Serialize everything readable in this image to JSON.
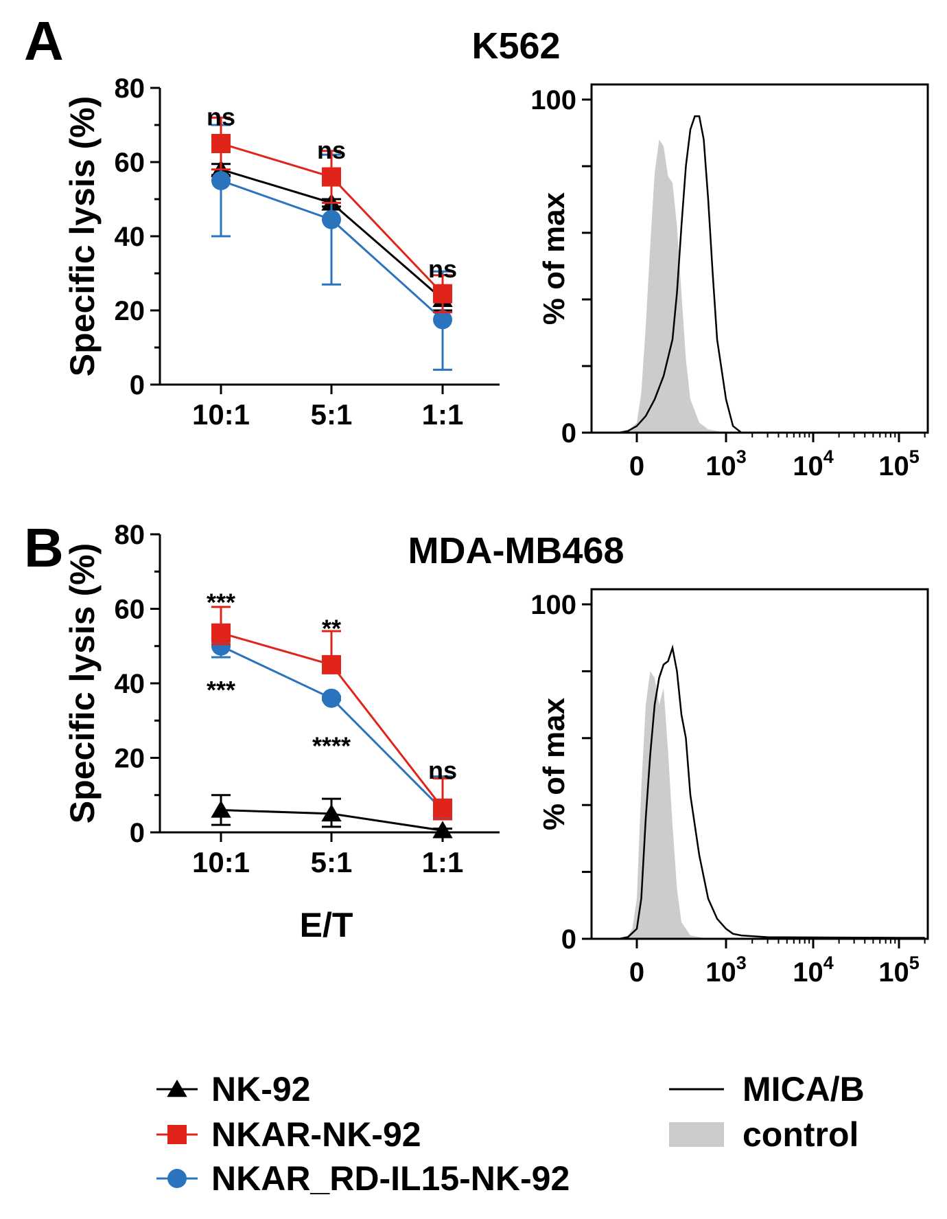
{
  "panels": {
    "A": {
      "letter": "A",
      "title": "K562"
    },
    "B": {
      "letter": "B",
      "title": "MDA-MB468"
    }
  },
  "colors": {
    "nk92": "#000000",
    "nkar": "#e02419",
    "il15": "#2a73bd",
    "control_fill": "#cccccc",
    "mica": "#000000"
  },
  "chart_data": [
    {
      "id": "lysisA",
      "type": "line",
      "panel": "A",
      "title": "K562",
      "categories": [
        "10:1",
        "5:1",
        "1:1"
      ],
      "ylabel": "Specific lysis  (%)",
      "xlabel": "",
      "ylim": [
        0,
        80
      ],
      "yticks": [
        0,
        20,
        40,
        60,
        80
      ],
      "series": [
        {
          "key": "nk92",
          "name": "NK-92",
          "marker": "triangle",
          "values": [
            58,
            49,
            23
          ],
          "err_hi": [
            1.5,
            1,
            3
          ],
          "err_lo": [
            1.5,
            1,
            3
          ]
        },
        {
          "key": "il15",
          "name": "NKAR_RD-IL15-NK-92",
          "marker": "circle",
          "values": [
            55,
            44.5,
            17.5
          ],
          "err_hi": [
            15,
            17.5,
            13
          ],
          "err_lo": [
            15,
            17.5,
            13.5
          ]
        },
        {
          "key": "nkar",
          "name": "NKAR-NK-92",
          "marker": "square",
          "values": [
            65,
            56,
            24.5
          ],
          "err_hi": [
            7,
            7,
            5
          ],
          "err_lo": [
            7,
            7,
            5
          ]
        }
      ],
      "annotations": [
        {
          "cat": 0,
          "y": 72.5,
          "text": "ns"
        },
        {
          "cat": 1,
          "y": 63.5,
          "text": "ns"
        },
        {
          "cat": 2,
          "y": 31.5,
          "text": "ns"
        }
      ]
    },
    {
      "id": "histA",
      "type": "area",
      "panel": "A",
      "ylabel": "% of max",
      "xlabel": "",
      "ylim": [
        0,
        100
      ],
      "yticks": [
        0,
        20,
        40,
        60,
        80,
        100
      ],
      "ytick_labels": [
        "0",
        "",
        "",
        "",
        "",
        "100"
      ],
      "xtick_labels": [
        {
          "pos": 0,
          "base": "0",
          "exp": ""
        },
        {
          "pos": 1000,
          "base": "10",
          "exp": "3"
        },
        {
          "pos": 10000,
          "base": "10",
          "exp": "4"
        },
        {
          "pos": 100000,
          "base": "10",
          "exp": "5"
        }
      ],
      "series": [
        {
          "key": "control",
          "name": "control",
          "style": "fill",
          "x": [
            -220,
            -100,
            0,
            50,
            100,
            150,
            200,
            250,
            300,
            350,
            400,
            450,
            500,
            550,
            600,
            700,
            800,
            1000
          ],
          "y": [
            0,
            0.5,
            3,
            12,
            32,
            56,
            78,
            88,
            86,
            77,
            75,
            62,
            42,
            22,
            10,
            3,
            1,
            0
          ]
        },
        {
          "key": "mica",
          "name": "MICA/B",
          "style": "line",
          "x": [
            -200,
            -100,
            0,
            100,
            200,
            300,
            400,
            450,
            500,
            550,
            600,
            650,
            700,
            750,
            800,
            850,
            900,
            1000,
            1200,
            1500
          ],
          "y": [
            0,
            0.5,
            2,
            5,
            10,
            17,
            28,
            42,
            62,
            80,
            91,
            95,
            95,
            88,
            70,
            48,
            28,
            10,
            2,
            0
          ]
        }
      ]
    },
    {
      "id": "lysisB",
      "type": "line",
      "panel": "B",
      "title": "MDA-MB468",
      "categories": [
        "10:1",
        "5:1",
        "1:1"
      ],
      "ylabel": "Specific lysis  (%)",
      "xlabel": "E/T",
      "ylim": [
        0,
        80
      ],
      "yticks": [
        0,
        20,
        40,
        60,
        80
      ],
      "series": [
        {
          "key": "nk92",
          "name": "NK-92",
          "marker": "triangle",
          "values": [
            6,
            5,
            0.5
          ],
          "err_hi": [
            4,
            4,
            0.5
          ],
          "err_lo": [
            4,
            3.5,
            0.5
          ]
        },
        {
          "key": "il15",
          "name": "NKAR_RD-IL15-NK-92",
          "marker": "circle",
          "values": [
            50,
            36,
            6
          ],
          "err_hi": [
            3,
            0.5,
            9
          ],
          "err_lo": [
            3,
            0.5,
            2
          ]
        },
        {
          "key": "nkar",
          "name": "NKAR-NK-92",
          "marker": "square",
          "values": [
            53.5,
            45,
            6.5
          ],
          "err_hi": [
            7,
            9,
            8
          ],
          "err_lo": [
            3,
            2,
            3
          ]
        }
      ],
      "annotations": [
        {
          "cat": 0,
          "y": 62,
          "text": "***"
        },
        {
          "cat": 0,
          "y": 38.5,
          "text": "***"
        },
        {
          "cat": 1,
          "y": 55,
          "text": "**"
        },
        {
          "cat": 1,
          "y": 23.5,
          "text": "****"
        },
        {
          "cat": 2,
          "y": 17,
          "text": "ns"
        }
      ]
    },
    {
      "id": "histB",
      "type": "area",
      "panel": "B",
      "ylabel": "% of max",
      "xlabel": "",
      "ylim": [
        0,
        100
      ],
      "yticks": [
        0,
        20,
        40,
        60,
        80,
        100
      ],
      "ytick_labels": [
        "0",
        "",
        "",
        "",
        "",
        "100"
      ],
      "xtick_labels": [
        {
          "pos": 0,
          "base": "0",
          "exp": ""
        },
        {
          "pos": 1000,
          "base": "10",
          "exp": "3"
        },
        {
          "pos": 10000,
          "base": "10",
          "exp": "4"
        },
        {
          "pos": 100000,
          "base": "10",
          "exp": "5"
        }
      ],
      "series": [
        {
          "key": "control",
          "name": "control",
          "style": "fill",
          "x": [
            -220,
            -100,
            -50,
            0,
            50,
            100,
            150,
            200,
            250,
            300,
            350,
            400,
            450,
            500,
            600,
            800
          ],
          "y": [
            0,
            1,
            3,
            12,
            45,
            70,
            80,
            78,
            70,
            75,
            56,
            34,
            15,
            5,
            1,
            0
          ]
        },
        {
          "key": "mica",
          "name": "MICA/B",
          "style": "line",
          "x": [
            -200,
            -100,
            0,
            50,
            100,
            150,
            200,
            250,
            300,
            350,
            400,
            450,
            500,
            550,
            600,
            700,
            800,
            900,
            1000,
            1200,
            1500,
            3000,
            100000,
            200000
          ],
          "y": [
            0,
            0.5,
            3,
            12,
            36,
            55,
            70,
            78,
            82,
            83,
            87,
            80,
            67,
            60,
            43,
            25,
            12,
            6,
            3,
            1.5,
            1,
            0.5,
            0.3,
            0.3
          ]
        }
      ]
    }
  ],
  "legend_left": [
    {
      "key": "nk92",
      "marker": "triangle",
      "label": "NK-92"
    },
    {
      "key": "nkar",
      "marker": "square",
      "label": "NKAR-NK-92"
    },
    {
      "key": "il15",
      "marker": "circle",
      "label": "NKAR_RD-IL15-NK-92"
    }
  ],
  "legend_right": [
    {
      "key": "mica",
      "style": "line",
      "label": "MICA/B"
    },
    {
      "key": "control",
      "style": "fill",
      "label": "control"
    }
  ]
}
